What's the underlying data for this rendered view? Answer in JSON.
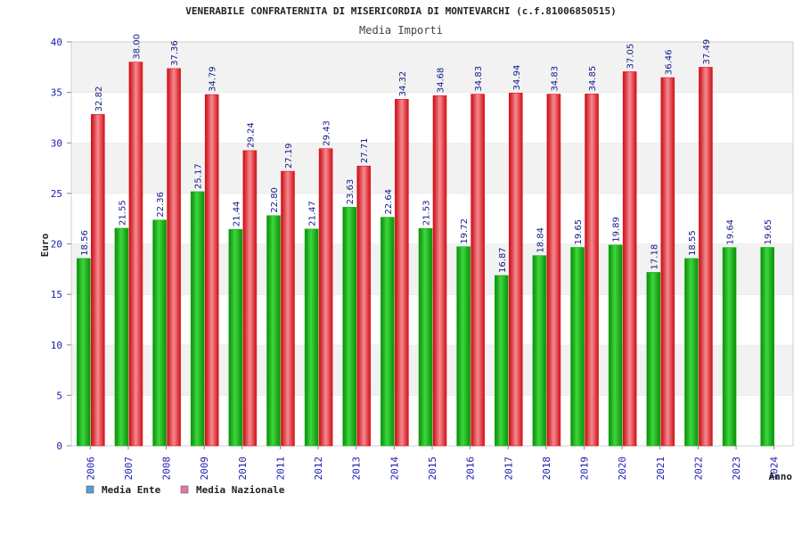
{
  "chart_data": {
    "type": "bar",
    "title": "VENERABILE CONFRATERNITA DI MISERICORDIA DI MONTEVARCHI (c.f.81006850515)",
    "subtitle": "Media Importi",
    "xlabel": "Anno",
    "ylabel": "Euro",
    "ylim": [
      0,
      40
    ],
    "yticks": [
      0,
      5,
      10,
      15,
      20,
      25,
      30,
      35,
      40
    ],
    "grid": "horizontal-bands",
    "legend_position": "bottom-left",
    "categories": [
      "2006",
      "2007",
      "2008",
      "2009",
      "2010",
      "2011",
      "2012",
      "2013",
      "2014",
      "2015",
      "2016",
      "2017",
      "2018",
      "2019",
      "2020",
      "2021",
      "2022",
      "2023",
      "2024"
    ],
    "series": [
      {
        "name": "Media Ente",
        "legend_color": "#5b9bd5",
        "color": "#12b512",
        "values": [
          18.56,
          21.55,
          22.36,
          25.17,
          21.44,
          22.8,
          21.47,
          23.63,
          22.64,
          21.53,
          19.72,
          16.87,
          18.84,
          19.65,
          19.89,
          17.18,
          18.55,
          19.64,
          19.65
        ],
        "labels": [
          "18.56",
          "21.55",
          "22.36",
          "25.17",
          "21.44",
          "22.80",
          "21.47",
          "23.63",
          "22.64",
          "21.53",
          "19.72",
          "16.87",
          "18.84",
          "19.65",
          "19.89",
          "17.18",
          "18.55",
          "19.64",
          "19.65"
        ]
      },
      {
        "name": "Media Nazionale",
        "legend_color": "#e377a8",
        "color": "#e8141e",
        "values": [
          32.82,
          38.0,
          37.36,
          34.79,
          29.24,
          27.19,
          29.43,
          27.71,
          34.32,
          34.68,
          34.83,
          34.94,
          34.83,
          34.85,
          37.05,
          36.46,
          37.49,
          null,
          null
        ],
        "labels": [
          "32.82",
          "38.00",
          "37.36",
          "34.79",
          "29.24",
          "27.19",
          "29.43",
          "27.71",
          "34.32",
          "34.68",
          "34.83",
          "34.94",
          "34.83",
          "34.85",
          "37.05",
          "36.46",
          "37.49",
          null,
          null
        ]
      }
    ]
  }
}
